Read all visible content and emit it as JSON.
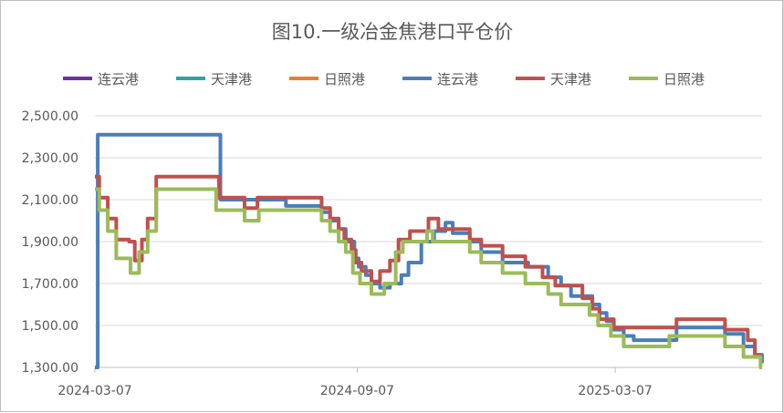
{
  "chart_data": {
    "type": "line",
    "title": "图10.一级冶金焦港口平仓价",
    "xlabel": "",
    "ylabel": "",
    "ylim": [
      1300,
      2500
    ],
    "yticks": [
      "2,500.00",
      "2,300.00",
      "2,100.00",
      "1,900.00",
      "1,700.00",
      "1,500.00",
      "1,300.00"
    ],
    "yticks_values": [
      2500,
      2300,
      2100,
      1900,
      1700,
      1500,
      1300
    ],
    "xlim": [
      "2024-03-07",
      "2025-06-18"
    ],
    "xticks": [
      "2024-03-07",
      "2024-09-07",
      "2025-03-07"
    ],
    "grid": true,
    "legend_position": "top",
    "series": [
      {
        "name": "连云港",
        "color": "#7030a0",
        "points": []
      },
      {
        "name": "天津港",
        "color": "#2fa4a4",
        "points": []
      },
      {
        "name": "日照港",
        "color": "#ed7d31",
        "points": []
      },
      {
        "name": "连云港",
        "color": "#4a7ebb",
        "points": [
          [
            "2024-03-07",
            1300
          ],
          [
            "2024-03-09",
            2410
          ],
          [
            "2024-05-29",
            2410
          ],
          [
            "2024-06-03",
            2100
          ],
          [
            "2024-07-19",
            2070
          ],
          [
            "2024-08-13",
            2040
          ],
          [
            "2024-08-19",
            2000
          ],
          [
            "2024-08-25",
            1960
          ],
          [
            "2024-08-30",
            1900
          ],
          [
            "2024-09-05",
            1820
          ],
          [
            "2024-09-08",
            1780
          ],
          [
            "2024-09-13",
            1740
          ],
          [
            "2024-09-17",
            1700
          ],
          [
            "2024-09-23",
            1680
          ],
          [
            "2024-09-30",
            1700
          ],
          [
            "2024-10-08",
            1740
          ],
          [
            "2024-10-13",
            1800
          ],
          [
            "2024-10-22",
            1900
          ],
          [
            "2024-10-31",
            1950
          ],
          [
            "2024-11-08",
            1990
          ],
          [
            "2024-11-13",
            1940
          ],
          [
            "2024-11-25",
            1900
          ],
          [
            "2024-12-03",
            1850
          ],
          [
            "2024-12-18",
            1800
          ],
          [
            "2025-01-05",
            1780
          ],
          [
            "2025-01-19",
            1730
          ],
          [
            "2025-01-28",
            1690
          ],
          [
            "2025-02-04",
            1640
          ],
          [
            "2025-02-19",
            1600
          ],
          [
            "2025-02-24",
            1560
          ],
          [
            "2025-03-01",
            1520
          ],
          [
            "2025-03-06",
            1480
          ],
          [
            "2025-03-13",
            1450
          ],
          [
            "2025-03-20",
            1430
          ],
          [
            "2025-04-14",
            1430
          ],
          [
            "2025-04-19",
            1490
          ],
          [
            "2025-05-23",
            1460
          ],
          [
            "2025-06-05",
            1400
          ],
          [
            "2025-06-13",
            1360
          ],
          [
            "2025-06-18",
            1320
          ]
        ]
      },
      {
        "name": "天津港",
        "color": "#c0504d",
        "points": [
          [
            "2024-03-07",
            2210
          ],
          [
            "2024-03-10",
            2110
          ],
          [
            "2024-03-16",
            2010
          ],
          [
            "2024-03-22",
            1910
          ],
          [
            "2024-03-31",
            1900
          ],
          [
            "2024-04-04",
            1810
          ],
          [
            "2024-04-09",
            1910
          ],
          [
            "2024-04-13",
            2010
          ],
          [
            "2024-04-19",
            2210
          ],
          [
            "2024-05-29",
            2210
          ],
          [
            "2024-06-02",
            2110
          ],
          [
            "2024-06-20",
            2060
          ],
          [
            "2024-06-29",
            2110
          ],
          [
            "2024-08-01",
            2110
          ],
          [
            "2024-08-13",
            2060
          ],
          [
            "2024-08-19",
            2010
          ],
          [
            "2024-08-25",
            1960
          ],
          [
            "2024-08-29",
            1910
          ],
          [
            "2024-09-03",
            1860
          ],
          [
            "2024-09-06",
            1800
          ],
          [
            "2024-09-10",
            1760
          ],
          [
            "2024-09-17",
            1710
          ],
          [
            "2024-09-23",
            1760
          ],
          [
            "2024-09-30",
            1810
          ],
          [
            "2024-10-06",
            1910
          ],
          [
            "2024-10-14",
            1950
          ],
          [
            "2024-10-27",
            2010
          ],
          [
            "2024-11-03",
            1960
          ],
          [
            "2024-11-25",
            1910
          ],
          [
            "2024-12-03",
            1880
          ],
          [
            "2024-12-18",
            1830
          ],
          [
            "2025-01-03",
            1780
          ],
          [
            "2025-01-15",
            1730
          ],
          [
            "2025-01-24",
            1690
          ],
          [
            "2025-02-12",
            1630
          ],
          [
            "2025-02-19",
            1580
          ],
          [
            "2025-02-24",
            1530
          ],
          [
            "2025-03-06",
            1490
          ],
          [
            "2025-04-19",
            1530
          ],
          [
            "2025-05-23",
            1480
          ],
          [
            "2025-06-08",
            1430
          ],
          [
            "2025-06-13",
            1360
          ]
        ]
      },
      {
        "name": "日照港",
        "color": "#9bbb59",
        "points": [
          [
            "2024-03-07",
            2150
          ],
          [
            "2024-03-10",
            2050
          ],
          [
            "2024-03-16",
            1950
          ],
          [
            "2024-03-22",
            1820
          ],
          [
            "2024-04-01",
            1750
          ],
          [
            "2024-04-07",
            1850
          ],
          [
            "2024-04-13",
            1950
          ],
          [
            "2024-04-19",
            2150
          ],
          [
            "2024-05-31",
            2050
          ],
          [
            "2024-06-20",
            2000
          ],
          [
            "2024-06-30",
            2050
          ],
          [
            "2024-08-13",
            2000
          ],
          [
            "2024-08-19",
            1950
          ],
          [
            "2024-08-25",
            1900
          ],
          [
            "2024-08-30",
            1850
          ],
          [
            "2024-09-04",
            1750
          ],
          [
            "2024-09-09",
            1700
          ],
          [
            "2024-09-17",
            1650
          ],
          [
            "2024-09-26",
            1700
          ],
          [
            "2024-10-04",
            1850
          ],
          [
            "2024-10-09",
            1900
          ],
          [
            "2024-10-26",
            1950
          ],
          [
            "2024-10-30",
            1900
          ],
          [
            "2024-11-25",
            1850
          ],
          [
            "2024-12-03",
            1800
          ],
          [
            "2024-12-18",
            1750
          ],
          [
            "2025-01-03",
            1700
          ],
          [
            "2025-01-19",
            1650
          ],
          [
            "2025-01-28",
            1600
          ],
          [
            "2025-02-17",
            1550
          ],
          [
            "2025-02-23",
            1500
          ],
          [
            "2025-03-04",
            1450
          ],
          [
            "2025-03-13",
            1400
          ],
          [
            "2025-04-14",
            1450
          ],
          [
            "2025-05-23",
            1400
          ],
          [
            "2025-06-05",
            1350
          ],
          [
            "2025-06-17",
            1300
          ]
        ]
      }
    ]
  }
}
